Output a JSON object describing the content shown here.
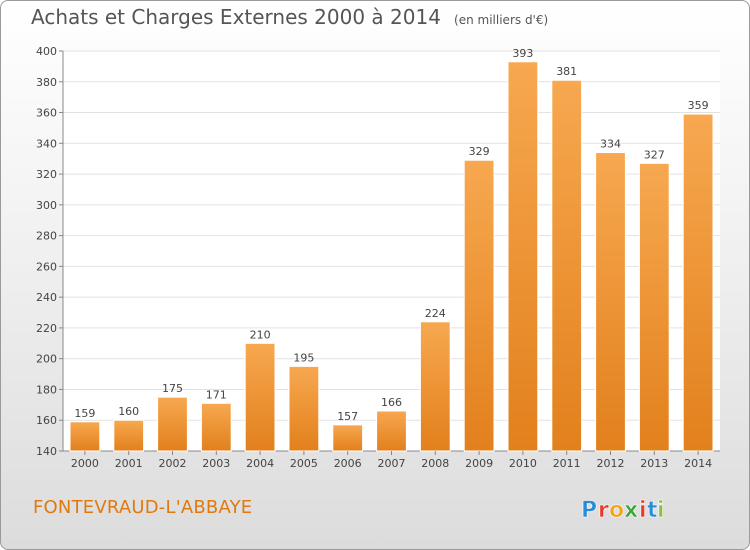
{
  "chart_data": {
    "type": "bar",
    "title": "Achats et Charges Externes 2000 à 2014",
    "subtitle": "(en milliers d'€)",
    "categories": [
      "2000",
      "2001",
      "2002",
      "2003",
      "2004",
      "2005",
      "2006",
      "2007",
      "2008",
      "2009",
      "2010",
      "2011",
      "2012",
      "2013",
      "2014"
    ],
    "values": [
      159,
      160,
      175,
      171,
      210,
      195,
      157,
      166,
      224,
      329,
      393,
      381,
      334,
      327,
      359
    ],
    "ylim": [
      140,
      400
    ],
    "yticks": [
      140,
      160,
      180,
      200,
      220,
      240,
      260,
      280,
      300,
      320,
      340,
      360,
      380,
      400
    ],
    "xlabel": "",
    "ylabel": "",
    "grid": true,
    "bar_color_top": "#f7a850",
    "bar_color_bottom": "#e2801c",
    "data_labels": true
  },
  "commune": "FONTEVRAUD-L'ABBAYE",
  "logo": {
    "letters": [
      "P",
      "r",
      "o",
      "x",
      "i",
      "t",
      "i"
    ],
    "colors": [
      "#2a8bd6",
      "#e53b2c",
      "#f2a51a",
      "#3aa63a",
      "#e53b2c",
      "#2a8bd6",
      "#8cbf3f"
    ]
  }
}
